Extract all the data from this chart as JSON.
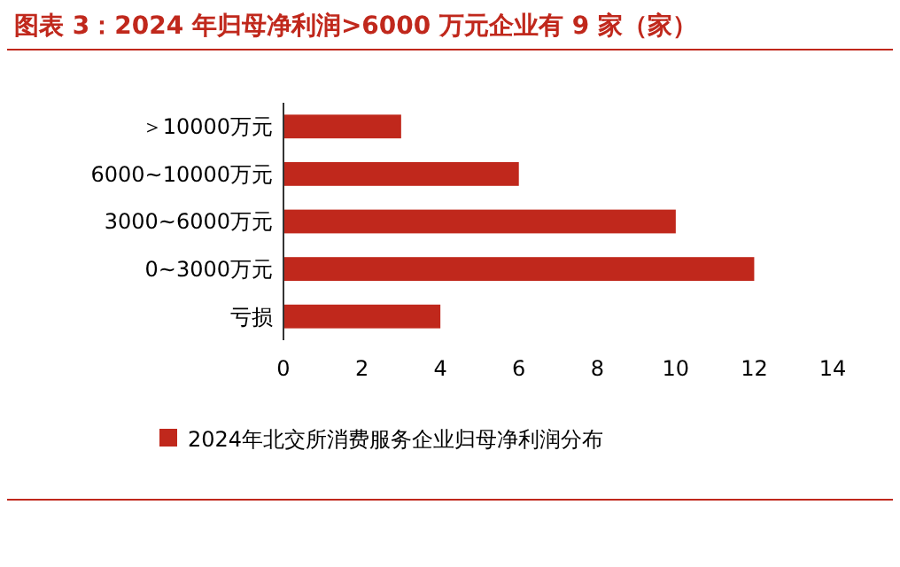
{
  "chart_data": {
    "type": "bar",
    "orientation": "horizontal",
    "title": "图表 3：2024 年归母净利润>6000 万元企业有 9 家（家）",
    "categories": [
      "＞10000万元",
      "6000~10000万元",
      "3000~6000万元",
      "0~3000万元",
      "亏损"
    ],
    "series": [
      {
        "name": "2024年北交所消费服务企业归母净利润分布",
        "color": "#c0281c",
        "values": [
          3,
          6,
          10,
          12,
          4
        ]
      }
    ],
    "xlim": [
      0,
      14
    ],
    "xticks": [
      0,
      2,
      4,
      6,
      8,
      10,
      12,
      14
    ],
    "grid": false,
    "legend": "bottom"
  }
}
